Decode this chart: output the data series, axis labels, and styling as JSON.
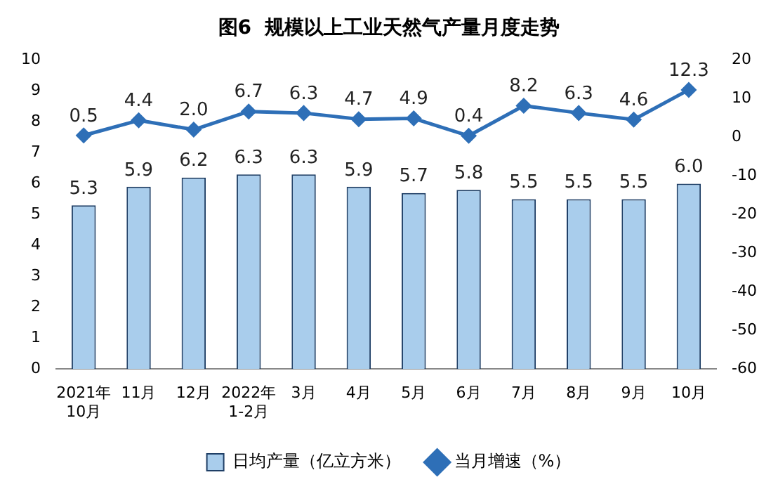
{
  "chart_data": {
    "type": "bar",
    "title": "图6  规模以上工业天然气产量月度走势",
    "categories": [
      "2021年\n10月",
      "11月",
      "12月",
      "2022年\n1-2月",
      "3月",
      "4月",
      "5月",
      "6月",
      "7月",
      "8月",
      "9月",
      "10月"
    ],
    "series": [
      {
        "name": "日均产量（亿立方米）",
        "color": "#a9cdec",
        "values": [
          5.3,
          5.9,
          6.2,
          6.3,
          6.3,
          5.9,
          5.7,
          5.8,
          5.5,
          5.5,
          5.5,
          6.0
        ],
        "value_labels": [
          "5.3",
          "5.9",
          "6.2",
          "6.3",
          "6.3",
          "5.9",
          "5.7",
          "5.8",
          "5.5",
          "5.5",
          "5.5",
          "6.0"
        ]
      },
      {
        "name": "当月增速（%）",
        "type": "line",
        "axis": "y2",
        "color": "#2e6fb7",
        "values": [
          0.5,
          4.4,
          2.0,
          6.7,
          6.3,
          4.7,
          4.9,
          0.4,
          8.2,
          6.3,
          4.6,
          12.3
        ],
        "value_labels": [
          "0.5",
          "4.4",
          "2.0",
          "6.7",
          "6.3",
          "4.7",
          "4.9",
          "0.4",
          "8.2",
          "6.3",
          "4.6",
          "12.3"
        ]
      }
    ],
    "ylim": [
      0,
      10
    ],
    "yticks": [
      0,
      1,
      2,
      3,
      4,
      5,
      6,
      7,
      8,
      9,
      10
    ],
    "y2lim": [
      -60,
      20
    ],
    "y2ticks": [
      -60,
      -50,
      -40,
      -30,
      -20,
      -10,
      0,
      10,
      20
    ],
    "grid": false,
    "legend": "bottom",
    "marker": "diamond"
  }
}
